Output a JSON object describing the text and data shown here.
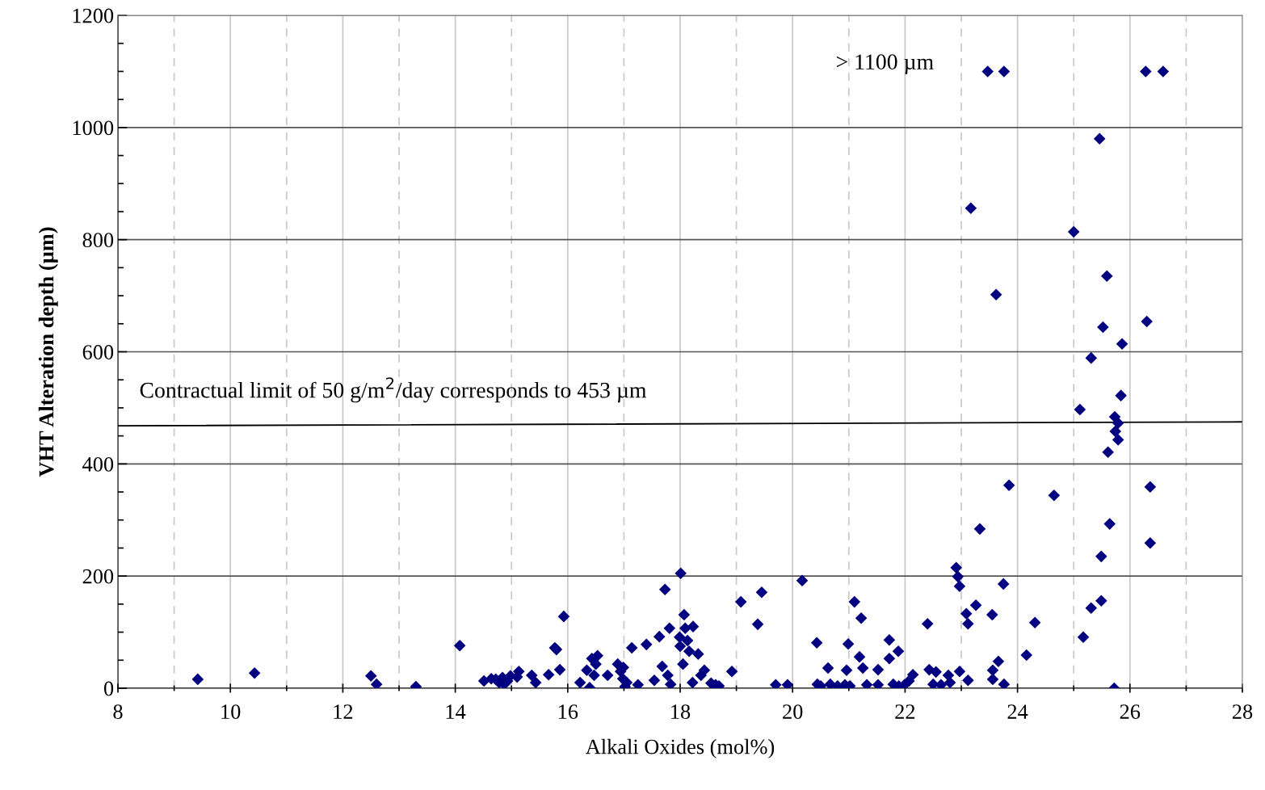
{
  "chart_data": {
    "type": "scatter",
    "xlabel": "Alkali Oxides (mol%)",
    "ylabel": "VHT Alteration depth (µm)",
    "xlim": [
      8,
      28
    ],
    "xticks": [
      8,
      10,
      12,
      14,
      16,
      18,
      20,
      22,
      24,
      26,
      28
    ],
    "ylim": [
      0,
      1200
    ],
    "yticks": [
      0,
      200,
      400,
      600,
      800,
      1000,
      1200
    ],
    "grid": true,
    "marker": "diamond",
    "legend": false,
    "annotations": [
      "> 1100 µm",
      "Contractual limit of 50 g/m$^{2}$/day corresponds to 453 µm"
    ],
    "series": [
      {
        "color": "#000080",
        "x": [
          9.42,
          10.43,
          12.5,
          12.6,
          13.3,
          14.08,
          14.51,
          14.64,
          14.72,
          14.78,
          14.84,
          14.87,
          14.93,
          14.98,
          15.1,
          15.13,
          15.36,
          15.43,
          15.66,
          15.77,
          15.8,
          15.86,
          15.93,
          16.22,
          16.34,
          16.39,
          16.43,
          16.47,
          16.5,
          16.53,
          16.71,
          16.89,
          16.94,
          16.99,
          16.98,
          17.02,
          17.05,
          17.14,
          17.25,
          17.4,
          17.54,
          17.63,
          17.68,
          17.73,
          17.78,
          17.81,
          17.83,
          17.99,
          18.01,
          18.0,
          18.05,
          18.07,
          18.09,
          18.13,
          18.16,
          18.22,
          18.23,
          18.32,
          18.37,
          18.43,
          18.55,
          18.63,
          18.69,
          18.92,
          19.08,
          19.38,
          19.45,
          19.7,
          19.91,
          20.17,
          20.43,
          20.44,
          20.5,
          20.63,
          20.67,
          20.8,
          20.93,
          20.96,
          20.99,
          21.02,
          21.1,
          21.22,
          21.19,
          21.25,
          21.32,
          21.52,
          21.52,
          21.72,
          21.72,
          21.79,
          21.88,
          21.89,
          21.99,
          22.07,
          22.14,
          22.4,
          22.43,
          22.55,
          22.5,
          22.64,
          22.77,
          22.8,
          22.91,
          22.94,
          22.97,
          22.97,
          23.09,
          23.12,
          23.12,
          23.17,
          23.26,
          23.33,
          23.47,
          23.55,
          23.56,
          23.56,
          23.62,
          23.66,
          23.75,
          23.76,
          23.76,
          23.85,
          24.16,
          24.31,
          24.65,
          25.0,
          25.11,
          25.17,
          25.31,
          25.31,
          25.46,
          25.49,
          25.49,
          25.52,
          25.59,
          25.61,
          25.64,
          25.72,
          25.73,
          25.79,
          25.74,
          25.79,
          25.84,
          25.86,
          26.3,
          26.28,
          26.59,
          26.36,
          26.36
        ],
        "values": [
          16,
          27,
          22,
          7,
          3,
          76,
          13,
          17,
          16,
          10,
          19,
          7,
          13,
          22,
          20,
          30,
          23,
          10,
          24,
          72,
          69,
          33,
          128,
          10,
          32,
          1,
          53,
          23,
          43,
          58,
          23,
          43,
          30,
          37,
          17,
          3,
          10,
          72,
          6,
          78,
          14,
          92,
          39,
          176,
          23,
          107,
          7,
          91,
          205,
          75,
          43,
          131,
          107,
          85,
          66,
          10,
          110,
          61,
          23,
          32,
          9,
          6,
          4,
          30,
          154,
          114,
          171,
          6,
          6,
          192,
          81,
          7,
          4,
          36,
          7,
          4,
          6,
          32,
          79,
          4,
          154,
          125,
          56,
          36,
          6,
          33,
          6,
          86,
          53,
          7,
          66,
          4,
          6,
          13,
          24,
          115,
          33,
          29,
          7,
          6,
          23,
          10,
          215,
          199,
          182,
          30,
          133,
          115,
          14,
          856,
          148,
          284,
          1100,
          131,
          16,
          32,
          702,
          48,
          186,
          1100,
          7,
          362,
          59,
          117,
          344,
          814,
          497,
          91,
          143,
          589,
          980,
          156,
          235,
          644,
          735,
          421,
          293,
          0,
          484,
          473,
          458,
          443,
          522,
          614,
          654,
          1100,
          1100,
          359,
          259
        ]
      },
      {
        "type": "line",
        "color": "#000000",
        "x": [
          8,
          28
        ],
        "values": [
          468,
          475
        ],
        "marker": "none"
      }
    ]
  }
}
